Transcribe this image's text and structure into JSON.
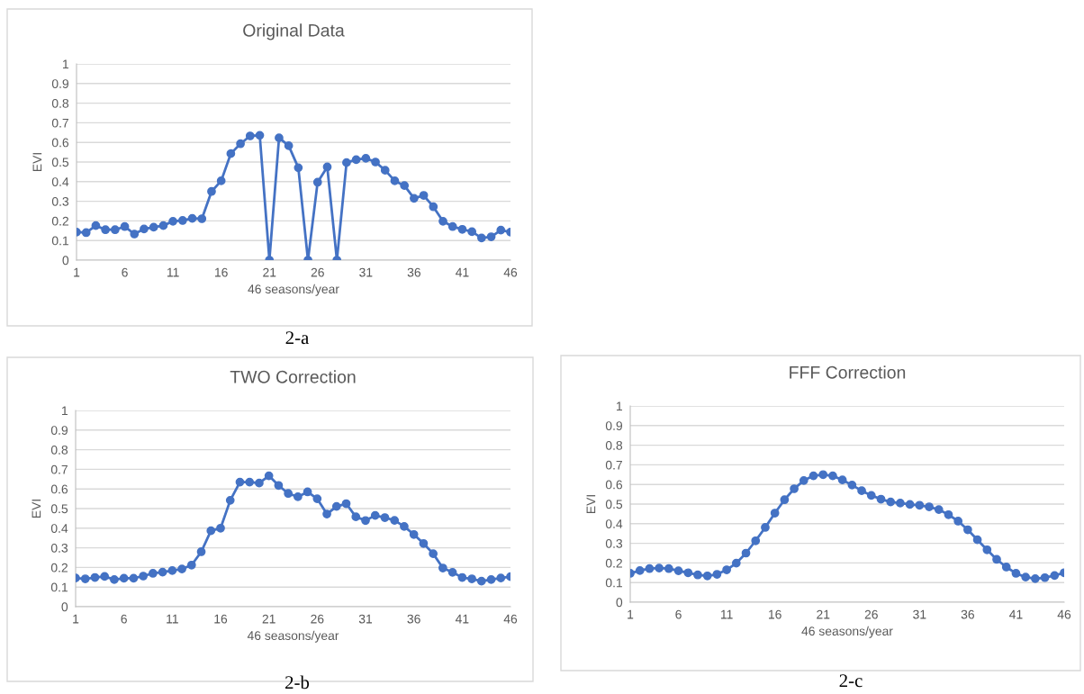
{
  "chart_data": [
    {
      "type": "line",
      "title": "Original Data",
      "xlabel": "46 seasons/year",
      "ylabel": "EVI",
      "annotations": [
        "2-a"
      ],
      "x": [
        1,
        2,
        3,
        4,
        5,
        6,
        7,
        8,
        9,
        10,
        11,
        12,
        13,
        14,
        15,
        16,
        17,
        18,
        19,
        20,
        21,
        22,
        23,
        24,
        25,
        26,
        27,
        28,
        29,
        30,
        31,
        32,
        33,
        34,
        35,
        36,
        37,
        38,
        39,
        40,
        41,
        42,
        43,
        44,
        45,
        46
      ],
      "series": [
        {
          "color": "#4472c4",
          "values": [
            0.143,
            0.14,
            0.176,
            0.155,
            0.155,
            0.171,
            0.133,
            0.159,
            0.168,
            0.176,
            0.198,
            0.202,
            0.213,
            0.211,
            0.35,
            0.404,
            0.543,
            0.593,
            0.633,
            0.636,
            0,
            0.623,
            0.583,
            0.471,
            0,
            0.397,
            0.475,
            0,
            0.497,
            0.512,
            0.519,
            0.5,
            0.458,
            0.404,
            0.38,
            0.315,
            0.33,
            0.272,
            0.198,
            0.171,
            0.157,
            0.145,
            0.113,
            0.119,
            0.153,
            0.143
          ]
        }
      ],
      "xlim": [
        1,
        46
      ],
      "xticks": [
        1,
        6,
        11,
        16,
        21,
        26,
        31,
        36,
        41,
        46
      ],
      "ylim": [
        0,
        1
      ],
      "yticks": [
        0,
        0.1,
        0.2,
        0.3,
        0.4,
        0.5,
        0.6,
        0.7,
        0.8,
        0.9,
        1
      ],
      "grid": "y",
      "marker": "circle",
      "line_style": "solid"
    },
    {
      "type": "line",
      "title": "TWO Correction",
      "xlabel": "46 seasons/year",
      "ylabel": "EVI",
      "annotations": [
        "2-b"
      ],
      "x": [
        1,
        2,
        3,
        4,
        5,
        6,
        7,
        8,
        9,
        10,
        11,
        12,
        13,
        14,
        15,
        16,
        17,
        18,
        19,
        20,
        21,
        22,
        23,
        24,
        25,
        26,
        27,
        28,
        29,
        30,
        31,
        32,
        33,
        34,
        35,
        36,
        37,
        38,
        39,
        40,
        41,
        42,
        43,
        44,
        45,
        46
      ],
      "series": [
        {
          "color": "#4472c4",
          "values": [
            0.146,
            0.142,
            0.149,
            0.154,
            0.138,
            0.145,
            0.145,
            0.156,
            0.17,
            0.176,
            0.184,
            0.192,
            0.212,
            0.28,
            0.387,
            0.4,
            0.542,
            0.635,
            0.635,
            0.63,
            0.667,
            0.618,
            0.577,
            0.56,
            0.585,
            0.55,
            0.472,
            0.511,
            0.525,
            0.458,
            0.439,
            0.465,
            0.454,
            0.44,
            0.409,
            0.368,
            0.322,
            0.27,
            0.197,
            0.175,
            0.149,
            0.142,
            0.13,
            0.138,
            0.146,
            0.153
          ]
        }
      ],
      "xlim": [
        1,
        46
      ],
      "xticks": [
        1,
        6,
        11,
        16,
        21,
        26,
        31,
        36,
        41,
        46
      ],
      "ylim": [
        0,
        1
      ],
      "yticks": [
        0,
        0.1,
        0.2,
        0.3,
        0.4,
        0.5,
        0.6,
        0.7,
        0.8,
        0.9,
        1
      ],
      "grid": "y",
      "marker": "circle",
      "line_style": "solid"
    },
    {
      "type": "line",
      "title": "FFF Correction",
      "xlabel": "46 seasons/year",
      "ylabel": "EVI",
      "annotations": [
        "2-c"
      ],
      "x": [
        1,
        2,
        3,
        4,
        5,
        6,
        7,
        8,
        9,
        10,
        11,
        12,
        13,
        14,
        15,
        16,
        17,
        18,
        19,
        20,
        21,
        22,
        23,
        24,
        25,
        26,
        27,
        28,
        29,
        30,
        31,
        32,
        33,
        34,
        35,
        36,
        37,
        38,
        39,
        40,
        41,
        42,
        43,
        44,
        45,
        46
      ],
      "series": [
        {
          "color": "#4472c4",
          "values": [
            0.147,
            0.161,
            0.171,
            0.174,
            0.171,
            0.16,
            0.15,
            0.139,
            0.134,
            0.142,
            0.165,
            0.199,
            0.25,
            0.313,
            0.381,
            0.454,
            0.522,
            0.578,
            0.62,
            0.644,
            0.65,
            0.644,
            0.623,
            0.597,
            0.568,
            0.544,
            0.525,
            0.511,
            0.505,
            0.498,
            0.494,
            0.486,
            0.472,
            0.446,
            0.413,
            0.369,
            0.318,
            0.267,
            0.218,
            0.179,
            0.147,
            0.128,
            0.12,
            0.125,
            0.136,
            0.15
          ]
        }
      ],
      "xlim": [
        1,
        46
      ],
      "xticks": [
        1,
        6,
        11,
        16,
        21,
        26,
        31,
        36,
        41,
        46
      ],
      "ylim": [
        0,
        1
      ],
      "yticks": [
        0,
        0.1,
        0.2,
        0.3,
        0.4,
        0.5,
        0.6,
        0.7,
        0.8,
        0.9,
        1
      ],
      "grid": "y",
      "marker": "circle",
      "line_style": "solid"
    }
  ]
}
